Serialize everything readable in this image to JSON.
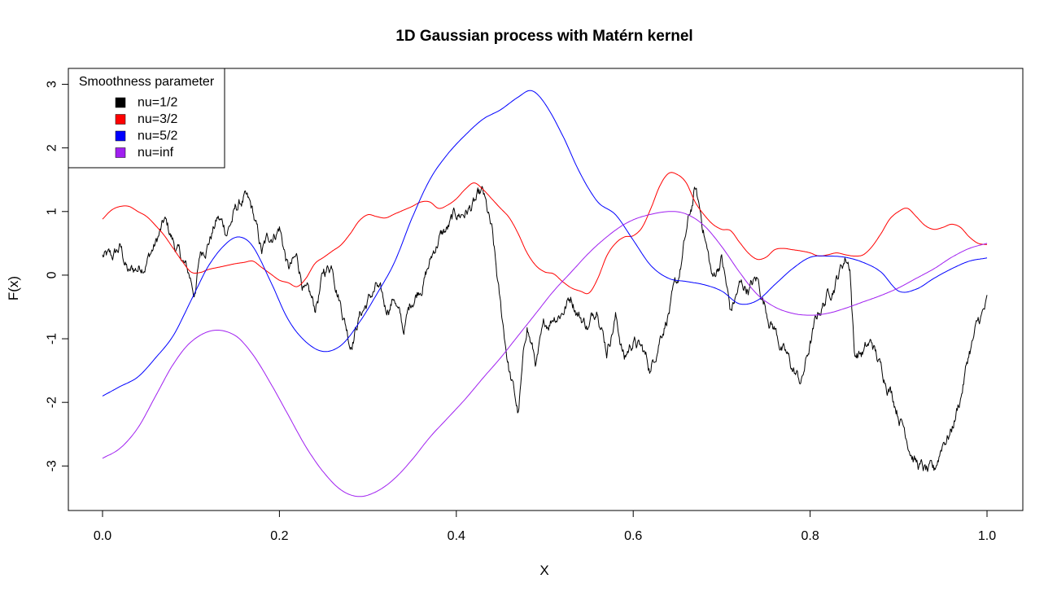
{
  "chart_data": {
    "type": "line",
    "title": "1D Gaussian process with Matérn kernel",
    "xlabel": "X",
    "ylabel": "F(x)",
    "xlim": [
      0.0,
      1.0
    ],
    "ylim": [
      -3.7,
      3.25
    ],
    "xticks": [
      "0.0",
      "0.2",
      "0.4",
      "0.6",
      "0.8",
      "1.0"
    ],
    "yticks": [
      "-3",
      "-2",
      "-1",
      "0",
      "1",
      "2",
      "3"
    ],
    "grid": false,
    "legend": {
      "title": "Smoothness parameter",
      "position": "top-left",
      "entries": [
        "nu=1/2",
        "nu=3/2",
        "nu=5/2",
        "nu=inf"
      ]
    },
    "series": [
      {
        "name": "nu=1/2",
        "color": "#000000",
        "rough": true,
        "x": [
          0.0,
          0.01,
          0.02,
          0.03,
          0.04,
          0.05,
          0.06,
          0.07,
          0.08,
          0.09,
          0.1,
          0.105,
          0.11,
          0.12,
          0.13,
          0.14,
          0.15,
          0.16,
          0.17,
          0.18,
          0.19,
          0.2,
          0.21,
          0.22,
          0.23,
          0.24,
          0.25,
          0.26,
          0.27,
          0.28,
          0.29,
          0.3,
          0.31,
          0.32,
          0.33,
          0.34,
          0.35,
          0.36,
          0.37,
          0.38,
          0.39,
          0.4,
          0.41,
          0.42,
          0.43,
          0.44,
          0.45,
          0.46,
          0.47,
          0.48,
          0.49,
          0.5,
          0.51,
          0.52,
          0.53,
          0.54,
          0.55,
          0.56,
          0.57,
          0.58,
          0.59,
          0.6,
          0.61,
          0.62,
          0.63,
          0.64,
          0.65,
          0.66,
          0.67,
          0.68,
          0.69,
          0.7,
          0.71,
          0.72,
          0.73,
          0.74,
          0.75,
          0.76,
          0.77,
          0.78,
          0.79,
          0.8,
          0.81,
          0.82,
          0.83,
          0.84,
          0.845,
          0.85,
          0.86,
          0.87,
          0.88,
          0.89,
          0.9,
          0.91,
          0.92,
          0.93,
          0.94,
          0.95,
          0.96,
          0.97,
          0.98,
          0.99,
          1.0
        ],
        "values": [
          0.3,
          0.2,
          0.4,
          0.0,
          0.1,
          0.3,
          0.5,
          0.8,
          0.5,
          0.2,
          -0.1,
          -0.3,
          0.3,
          0.6,
          0.9,
          0.7,
          1.0,
          1.2,
          0.9,
          0.3,
          0.6,
          0.8,
          0.1,
          0.2,
          -0.3,
          -0.6,
          0.0,
          0.2,
          -0.4,
          -1.0,
          -0.6,
          -0.4,
          -0.2,
          -0.6,
          -0.3,
          -0.9,
          -0.4,
          -0.1,
          0.2,
          0.6,
          0.7,
          0.9,
          1.0,
          1.1,
          1.2,
          0.6,
          -0.6,
          -1.5,
          -2.2,
          -0.8,
          -1.4,
          -0.9,
          -0.6,
          -0.5,
          -0.3,
          -0.6,
          -0.8,
          -0.4,
          -1.1,
          -0.6,
          -1.3,
          -1.0,
          -1.2,
          -1.5,
          -0.9,
          -0.5,
          -0.2,
          0.6,
          1.3,
          0.7,
          -0.1,
          0.3,
          -0.6,
          -0.2,
          -0.2,
          -0.1,
          -0.5,
          -0.8,
          -1.2,
          -1.5,
          -1.7,
          -1.1,
          -0.6,
          -0.3,
          0.0,
          0.3,
          0.2,
          -1.2,
          -1.2,
          -1.1,
          -1.5,
          -1.7,
          -2.1,
          -2.5,
          -2.9,
          -3.1,
          -3.2,
          -2.6,
          -2.4,
          -1.9,
          -1.2,
          -0.8,
          -0.5
        ]
      },
      {
        "name": "nu=3/2",
        "color": "#ff0000",
        "rough": false,
        "x": [
          0.0,
          0.01,
          0.02,
          0.03,
          0.04,
          0.05,
          0.06,
          0.07,
          0.08,
          0.09,
          0.1,
          0.11,
          0.12,
          0.13,
          0.14,
          0.15,
          0.16,
          0.17,
          0.18,
          0.19,
          0.2,
          0.21,
          0.22,
          0.23,
          0.24,
          0.25,
          0.26,
          0.27,
          0.28,
          0.29,
          0.3,
          0.31,
          0.32,
          0.33,
          0.34,
          0.35,
          0.36,
          0.37,
          0.38,
          0.39,
          0.4,
          0.41,
          0.42,
          0.43,
          0.44,
          0.45,
          0.46,
          0.47,
          0.48,
          0.49,
          0.5,
          0.51,
          0.52,
          0.53,
          0.54,
          0.55,
          0.56,
          0.57,
          0.58,
          0.59,
          0.6,
          0.61,
          0.62,
          0.63,
          0.64,
          0.65,
          0.66,
          0.67,
          0.68,
          0.69,
          0.7,
          0.71,
          0.72,
          0.73,
          0.74,
          0.75,
          0.76,
          0.77,
          0.78,
          0.79,
          0.8,
          0.81,
          0.82,
          0.83,
          0.84,
          0.85,
          0.86,
          0.87,
          0.88,
          0.89,
          0.9,
          0.91,
          0.92,
          0.93,
          0.94,
          0.95,
          0.96,
          0.97,
          0.98,
          0.99,
          1.0
        ],
        "values": [
          0.88,
          1.02,
          1.08,
          1.08,
          1.0,
          0.92,
          0.78,
          0.62,
          0.42,
          0.22,
          0.05,
          0.04,
          0.09,
          0.12,
          0.15,
          0.18,
          0.2,
          0.22,
          0.12,
          0.02,
          -0.08,
          -0.12,
          -0.18,
          -0.05,
          0.18,
          0.28,
          0.38,
          0.48,
          0.65,
          0.85,
          0.95,
          0.92,
          0.9,
          0.96,
          1.02,
          1.08,
          1.15,
          1.15,
          1.05,
          1.1,
          1.2,
          1.35,
          1.45,
          1.35,
          1.2,
          1.05,
          0.9,
          0.65,
          0.35,
          0.15,
          0.05,
          0.02,
          -0.1,
          -0.2,
          -0.25,
          -0.28,
          -0.05,
          0.3,
          0.5,
          0.6,
          0.62,
          0.75,
          1.05,
          1.4,
          1.6,
          1.58,
          1.45,
          1.15,
          0.95,
          0.8,
          0.72,
          0.7,
          0.52,
          0.35,
          0.25,
          0.28,
          0.4,
          0.42,
          0.4,
          0.38,
          0.35,
          0.3,
          0.32,
          0.35,
          0.32,
          0.3,
          0.32,
          0.45,
          0.65,
          0.88,
          1.0,
          1.05,
          0.92,
          0.78,
          0.72,
          0.75,
          0.8,
          0.75,
          0.6,
          0.5,
          0.48
        ]
      },
      {
        "name": "nu=5/2",
        "color": "#0000ff",
        "rough": false,
        "x": [
          0.0,
          0.02,
          0.04,
          0.06,
          0.08,
          0.1,
          0.12,
          0.14,
          0.155,
          0.17,
          0.19,
          0.21,
          0.23,
          0.25,
          0.27,
          0.29,
          0.31,
          0.33,
          0.35,
          0.37,
          0.39,
          0.41,
          0.43,
          0.45,
          0.47,
          0.485,
          0.5,
          0.52,
          0.54,
          0.56,
          0.58,
          0.6,
          0.62,
          0.64,
          0.66,
          0.68,
          0.7,
          0.72,
          0.74,
          0.76,
          0.78,
          0.8,
          0.82,
          0.84,
          0.86,
          0.88,
          0.9,
          0.92,
          0.94,
          0.96,
          0.98,
          1.0
        ],
        "values": [
          -1.9,
          -1.75,
          -1.6,
          -1.3,
          -0.95,
          -0.4,
          0.15,
          0.5,
          0.6,
          0.45,
          -0.1,
          -0.7,
          -1.05,
          -1.2,
          -1.1,
          -0.75,
          -0.3,
          0.2,
          0.9,
          1.5,
          1.9,
          2.2,
          2.45,
          2.6,
          2.8,
          2.9,
          2.7,
          2.2,
          1.6,
          1.15,
          0.95,
          0.55,
          0.15,
          -0.05,
          -0.1,
          -0.15,
          -0.25,
          -0.45,
          -0.4,
          -0.15,
          0.1,
          0.28,
          0.3,
          0.28,
          0.2,
          0.05,
          -0.25,
          -0.22,
          -0.05,
          0.1,
          0.22,
          0.27
        ]
      },
      {
        "name": "nu=inf",
        "color": "#a020f0",
        "rough": false,
        "x": [
          0.0,
          0.02,
          0.04,
          0.06,
          0.08,
          0.1,
          0.125,
          0.15,
          0.17,
          0.19,
          0.21,
          0.23,
          0.25,
          0.27,
          0.29,
          0.31,
          0.33,
          0.35,
          0.37,
          0.39,
          0.41,
          0.43,
          0.45,
          0.47,
          0.49,
          0.51,
          0.53,
          0.55,
          0.57,
          0.59,
          0.61,
          0.64,
          0.66,
          0.68,
          0.7,
          0.72,
          0.74,
          0.76,
          0.78,
          0.8,
          0.82,
          0.84,
          0.86,
          0.88,
          0.9,
          0.92,
          0.94,
          0.96,
          0.98,
          1.0
        ],
        "values": [
          -2.88,
          -2.72,
          -2.4,
          -1.9,
          -1.4,
          -1.05,
          -0.87,
          -0.95,
          -1.25,
          -1.7,
          -2.2,
          -2.7,
          -3.1,
          -3.38,
          -3.48,
          -3.4,
          -3.2,
          -2.9,
          -2.55,
          -2.25,
          -1.95,
          -1.62,
          -1.3,
          -0.95,
          -0.6,
          -0.25,
          0.05,
          0.35,
          0.6,
          0.8,
          0.92,
          1.0,
          0.96,
          0.78,
          0.45,
          0.05,
          -0.3,
          -0.5,
          -0.6,
          -0.63,
          -0.6,
          -0.52,
          -0.42,
          -0.32,
          -0.2,
          -0.05,
          0.1,
          0.28,
          0.42,
          0.5
        ]
      }
    ]
  }
}
